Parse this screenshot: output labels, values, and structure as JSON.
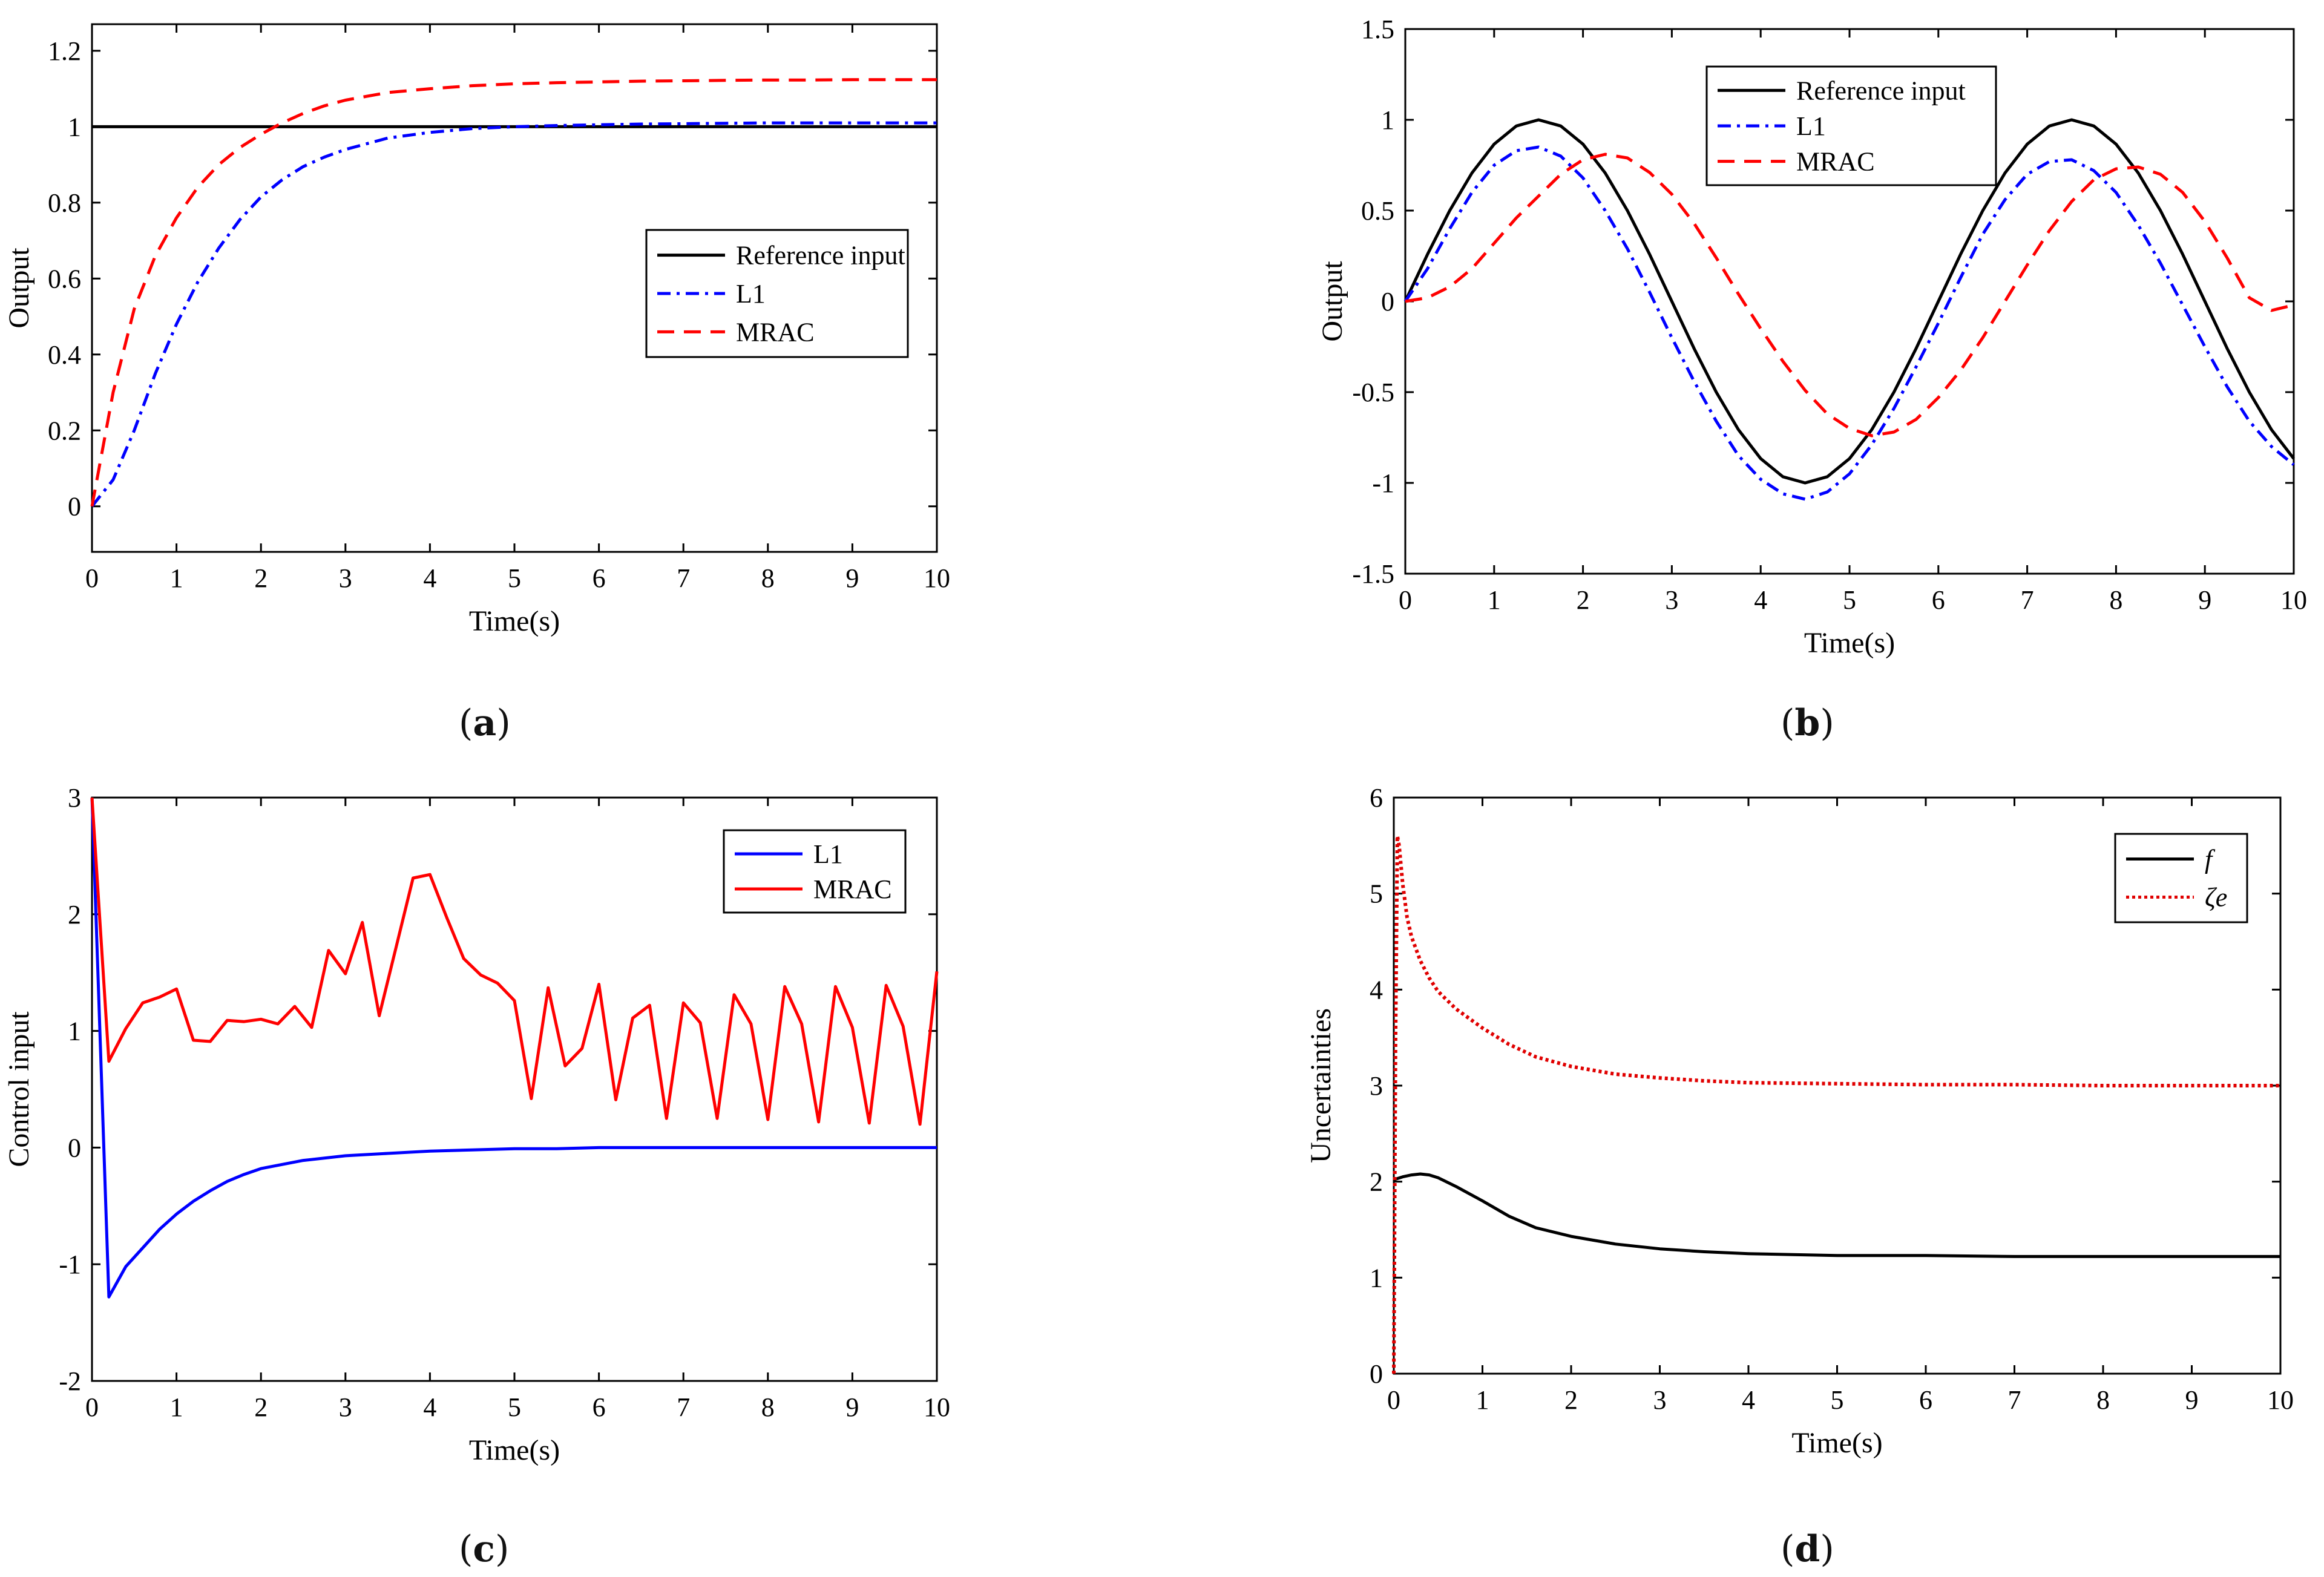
{
  "chart_data": [
    {
      "id": "a",
      "type": "line",
      "panel_label": {
        "open": "(",
        "letter": "a",
        "close": ")"
      },
      "xlabel": "Time(s)",
      "ylabel": "Output",
      "xlim": [
        0,
        10
      ],
      "ylim": [
        -0.12,
        1.27
      ],
      "xticks": [
        "0",
        "1",
        "2",
        "3",
        "4",
        "5",
        "6",
        "7",
        "8",
        "9",
        "10"
      ],
      "yticks": [
        "0",
        "0.2",
        "0.4",
        "0.6",
        "0.8",
        "1",
        "1.2"
      ],
      "legend_position": "right-middle",
      "x": [
        0,
        0.25,
        0.5,
        0.75,
        1,
        1.25,
        1.5,
        1.75,
        2,
        2.25,
        2.5,
        2.75,
        3,
        3.5,
        4,
        4.5,
        5,
        5.5,
        6,
        6.5,
        7,
        7.5,
        8,
        8.5,
        9,
        9.5,
        10
      ],
      "series": [
        {
          "name": "Reference input",
          "color": "#000000",
          "style": "solid",
          "values": [
            1,
            1,
            1,
            1,
            1,
            1,
            1,
            1,
            1,
            1,
            1,
            1,
            1,
            1,
            1,
            1,
            1,
            1,
            1,
            1,
            1,
            1,
            1,
            1,
            1,
            1,
            1
          ]
        },
        {
          "name": "L1",
          "color": "#0000ff",
          "style": "dashdot",
          "values": [
            0,
            0.07,
            0.2,
            0.35,
            0.48,
            0.59,
            0.68,
            0.755,
            0.815,
            0.86,
            0.895,
            0.92,
            0.94,
            0.97,
            0.985,
            0.995,
            1.0,
            1.003,
            1.005,
            1.007,
            1.008,
            1.009,
            1.01,
            1.01,
            1.01,
            1.01,
            1.01
          ]
        },
        {
          "name": "MRAC",
          "color": "#ff0000",
          "style": "dashed",
          "values": [
            0,
            0.3,
            0.52,
            0.66,
            0.76,
            0.84,
            0.9,
            0.945,
            0.98,
            1.01,
            1.035,
            1.055,
            1.07,
            1.09,
            1.1,
            1.108,
            1.113,
            1.116,
            1.118,
            1.12,
            1.121,
            1.122,
            1.123,
            1.123,
            1.124,
            1.124,
            1.124
          ]
        }
      ]
    },
    {
      "id": "b",
      "type": "line",
      "panel_label": {
        "open": "(",
        "letter": "b",
        "close": ")"
      },
      "xlabel": "Time(s)",
      "ylabel": "Output",
      "xlim": [
        0,
        10
      ],
      "ylim": [
        -1.5,
        1.5
      ],
      "xticks": [
        "0",
        "1",
        "2",
        "3",
        "4",
        "5",
        "6",
        "7",
        "8",
        "9",
        "10"
      ],
      "yticks": [
        "-1.5",
        "-1",
        "-0.5",
        "0",
        "0.5",
        "1",
        "1.5"
      ],
      "legend_position": "top-left",
      "x": [
        0,
        0.25,
        0.5,
        0.75,
        1,
        1.25,
        1.5,
        1.75,
        2,
        2.25,
        2.5,
        2.75,
        3,
        3.25,
        3.5,
        3.75,
        4,
        4.25,
        4.5,
        4.75,
        5,
        5.25,
        5.5,
        5.75,
        6,
        6.25,
        6.5,
        6.75,
        7,
        7.25,
        7.5,
        7.75,
        8,
        8.25,
        8.5,
        8.75,
        9,
        9.25,
        9.5,
        9.75,
        10
      ],
      "series": [
        {
          "name": "Reference input",
          "color": "#000000",
          "style": "solid",
          "values": [
            0,
            0.259,
            0.5,
            0.707,
            0.866,
            0.966,
            1,
            0.966,
            0.866,
            0.707,
            0.5,
            0.259,
            0,
            -0.259,
            -0.5,
            -0.707,
            -0.866,
            -0.966,
            -1,
            -0.966,
            -0.866,
            -0.707,
            -0.5,
            -0.259,
            0,
            0.259,
            0.5,
            0.707,
            0.866,
            0.966,
            1,
            0.966,
            0.866,
            0.707,
            0.5,
            0.259,
            0,
            -0.259,
            -0.5,
            -0.707,
            -0.866
          ]
        },
        {
          "name": "L1",
          "color": "#0000ff",
          "style": "dashdot",
          "values": [
            0,
            0.18,
            0.4,
            0.6,
            0.75,
            0.83,
            0.85,
            0.8,
            0.68,
            0.5,
            0.29,
            0.05,
            -0.2,
            -0.44,
            -0.66,
            -0.85,
            -0.98,
            -1.06,
            -1.09,
            -1.05,
            -0.95,
            -0.79,
            -0.59,
            -0.36,
            -0.12,
            0.13,
            0.37,
            0.56,
            0.7,
            0.77,
            0.78,
            0.72,
            0.6,
            0.42,
            0.21,
            -0.02,
            -0.25,
            -0.47,
            -0.66,
            -0.8,
            -0.9
          ]
        },
        {
          "name": "MRAC",
          "color": "#ff0000",
          "style": "dashed",
          "values": [
            0,
            0.02,
            0.08,
            0.18,
            0.32,
            0.46,
            0.58,
            0.7,
            0.78,
            0.81,
            0.79,
            0.71,
            0.59,
            0.43,
            0.24,
            0.04,
            -0.15,
            -0.33,
            -0.49,
            -0.62,
            -0.7,
            -0.74,
            -0.72,
            -0.65,
            -0.53,
            -0.38,
            -0.2,
            0,
            0.2,
            0.39,
            0.55,
            0.67,
            0.73,
            0.74,
            0.7,
            0.6,
            0.44,
            0.24,
            0.02,
            -0.05,
            -0.02
          ]
        }
      ]
    },
    {
      "id": "c",
      "type": "line",
      "panel_label": {
        "open": "(",
        "letter": "c",
        "close": ")"
      },
      "xlabel": "Time(s)",
      "ylabel": "Control input",
      "xlim": [
        0,
        10
      ],
      "ylim": [
        -2,
        3
      ],
      "xticks": [
        "0",
        "1",
        "2",
        "3",
        "4",
        "5",
        "6",
        "7",
        "8",
        "9",
        "10"
      ],
      "yticks": [
        "-2",
        "-1",
        "0",
        "1",
        "2",
        "3"
      ],
      "legend_position": "top-right",
      "series": [
        {
          "name": "L1",
          "color": "#0000ff",
          "style": "solid",
          "x": [
            0,
            0.2,
            0.4,
            0.6,
            0.8,
            1,
            1.2,
            1.4,
            1.6,
            1.8,
            2,
            2.5,
            3,
            3.5,
            4,
            4.5,
            5,
            5.5,
            6,
            6.5,
            7,
            7.5,
            8,
            8.5,
            9,
            9.5,
            10
          ],
          "values": [
            3,
            -1.28,
            -1.02,
            -0.86,
            -0.7,
            -0.57,
            -0.46,
            -0.37,
            -0.29,
            -0.23,
            -0.18,
            -0.11,
            -0.07,
            -0.05,
            -0.03,
            -0.02,
            -0.01,
            -0.01,
            0,
            0,
            0,
            0,
            0,
            0,
            0,
            0,
            0
          ]
        },
        {
          "name": "MRAC",
          "color": "#ff0000",
          "style": "solid",
          "x": [
            0,
            0.2,
            0.4,
            0.6,
            0.8,
            1,
            1.2,
            1.4,
            1.6,
            1.8,
            2,
            2.2,
            2.4,
            2.6,
            2.8,
            3,
            3.2,
            3.4,
            3.6,
            3.8,
            4,
            4.2,
            4.4,
            4.6,
            4.8,
            5,
            5.2,
            5.4,
            5.6,
            5.8,
            6,
            6.2,
            6.4,
            6.6,
            6.8,
            7,
            7.2,
            7.4,
            7.6,
            7.8,
            8,
            8.2,
            8.4,
            8.6,
            8.8,
            9,
            9.2,
            9.4,
            9.6,
            9.8,
            10
          ],
          "values": [
            3,
            0.74,
            1.02,
            1.24,
            1.29,
            1.36,
            0.92,
            0.91,
            1.09,
            1.08,
            1.1,
            1.06,
            1.21,
            1.03,
            1.69,
            1.49,
            1.93,
            1.13,
            1.72,
            2.31,
            2.34,
            1.97,
            1.62,
            1.48,
            1.41,
            1.26,
            0.42,
            1.37,
            0.7,
            0.85,
            1.4,
            0.41,
            1.11,
            1.22,
            0.25,
            1.24,
            1.07,
            0.25,
            1.31,
            1.06,
            0.24,
            1.38,
            1.06,
            0.22,
            1.38,
            1.03,
            0.21,
            1.39,
            1.04,
            0.2,
            1.51
          ]
        }
      ]
    },
    {
      "id": "d",
      "type": "line",
      "panel_label": {
        "open": "(",
        "letter": "d",
        "close": ")"
      },
      "xlabel": "Time(s)",
      "ylabel": "Uncertainties",
      "xlim": [
        0,
        10
      ],
      "ylim": [
        0,
        6
      ],
      "xticks": [
        "0",
        "1",
        "2",
        "3",
        "4",
        "5",
        "6",
        "7",
        "8",
        "9",
        "10"
      ],
      "yticks": [
        "0",
        "1",
        "2",
        "3",
        "4",
        "5",
        "6"
      ],
      "legend_position": "top-right",
      "series": [
        {
          "name": "f",
          "color": "#000000",
          "style": "solid",
          "x": [
            0,
            0.1,
            0.2,
            0.3,
            0.4,
            0.5,
            0.7,
            1,
            1.3,
            1.6,
            2,
            2.5,
            3,
            3.5,
            4,
            4.5,
            5,
            6,
            7,
            8,
            9,
            10
          ],
          "values": [
            2.02,
            2.05,
            2.07,
            2.08,
            2.07,
            2.04,
            1.95,
            1.8,
            1.64,
            1.52,
            1.43,
            1.35,
            1.3,
            1.27,
            1.25,
            1.24,
            1.23,
            1.23,
            1.22,
            1.22,
            1.22,
            1.22
          ]
        },
        {
          "name": "ζe",
          "color": "#e00000",
          "style": "dotted",
          "x": [
            0,
            0.02,
            0.04,
            0.06,
            0.1,
            0.15,
            0.2,
            0.3,
            0.4,
            0.5,
            0.7,
            1,
            1.3,
            1.6,
            2,
            2.5,
            3,
            3.5,
            4,
            5,
            6,
            7,
            8,
            9,
            10
          ],
          "values": [
            0,
            3.5,
            5.6,
            5.5,
            5.1,
            4.75,
            4.55,
            4.3,
            4.12,
            3.98,
            3.8,
            3.6,
            3.43,
            3.3,
            3.2,
            3.12,
            3.08,
            3.05,
            3.03,
            3.02,
            3.01,
            3.01,
            3.0,
            3.0,
            3.0
          ]
        }
      ]
    }
  ]
}
